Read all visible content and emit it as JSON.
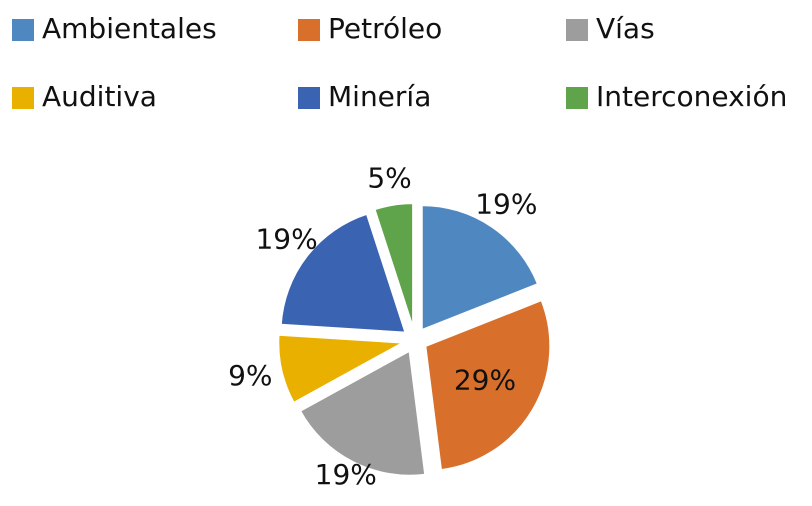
{
  "chart_data": {
    "type": "pie",
    "categories": [
      "Ambientales",
      "Petróleo",
      "Vías",
      "Auditiva",
      "Minería",
      "Interconexión"
    ],
    "values": [
      19,
      29,
      19,
      9,
      19,
      5
    ],
    "value_labels": [
      "19%",
      "29%",
      "19%",
      "9%",
      "19%",
      "5%"
    ],
    "colors": [
      "#4f88c0",
      "#d8702b",
      "#9d9d9d",
      "#e9b000",
      "#3a63b2",
      "#5fa34a"
    ],
    "legend": "top",
    "exploded": true
  }
}
